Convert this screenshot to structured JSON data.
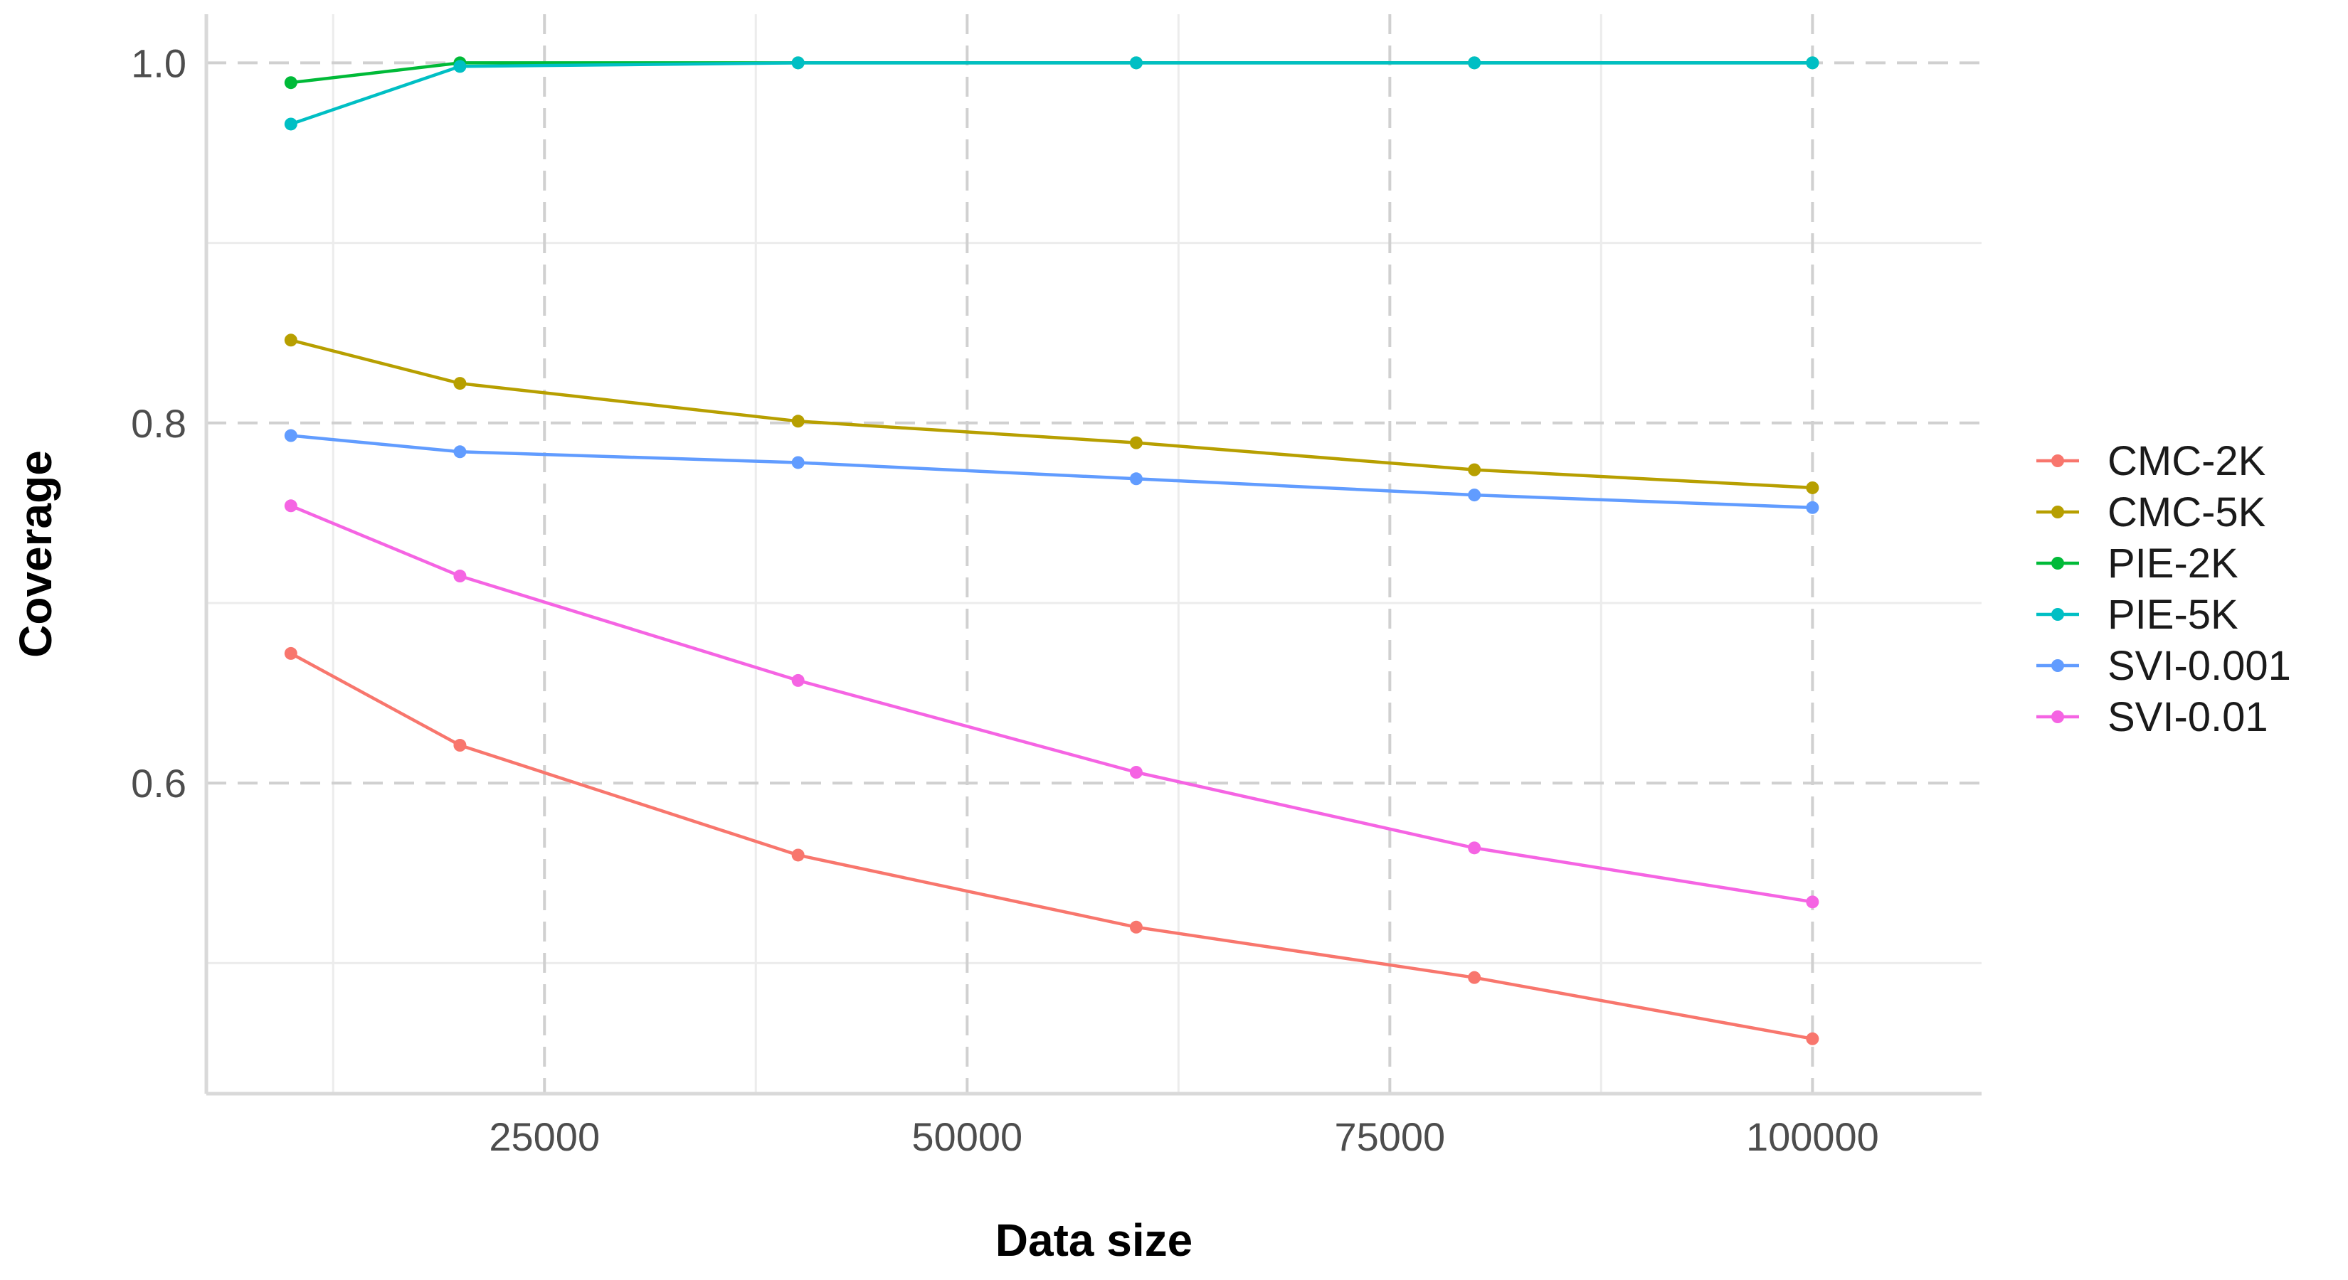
{
  "chart_data": {
    "type": "line",
    "xlabel": "Data size",
    "ylabel": "Coverage",
    "xlim": [
      5000,
      110000
    ],
    "ylim": [
      0.4275,
      1.027
    ],
    "x_ticks": [
      25000,
      50000,
      75000,
      100000
    ],
    "x_tick_labels": [
      "25000",
      "50000",
      "75000",
      "100000"
    ],
    "x_minor_ticks": [
      12500,
      37500,
      62500,
      87500
    ],
    "y_ticks": [
      0.6,
      0.8,
      1.0
    ],
    "y_tick_labels": [
      "0.6",
      "0.8",
      "1.0"
    ],
    "y_minor_ticks": [
      0.5,
      0.7,
      0.9
    ],
    "grid": true,
    "legend_position": "right",
    "x": [
      10000,
      20000,
      40000,
      60000,
      80000,
      100000
    ],
    "series": [
      {
        "name": "CMC-2K",
        "color": "#F8766D",
        "values": [
          0.672,
          0.621,
          0.56,
          0.52,
          0.492,
          0.458
        ]
      },
      {
        "name": "CMC-5K",
        "color": "#B79F00",
        "values": [
          0.846,
          0.822,
          0.801,
          0.789,
          0.774,
          0.764
        ]
      },
      {
        "name": "PIE-2K",
        "color": "#00BA38",
        "values": [
          0.989,
          1.0,
          1.0,
          1.0,
          1.0,
          1.0
        ]
      },
      {
        "name": "PIE-5K",
        "color": "#00BFC4",
        "values": [
          0.966,
          0.998,
          1.0,
          1.0,
          1.0,
          1.0
        ]
      },
      {
        "name": "SVI-0.001",
        "color": "#619CFF",
        "values": [
          0.793,
          0.784,
          0.778,
          0.769,
          0.76,
          0.753
        ]
      },
      {
        "name": "SVI-0.01",
        "color": "#F564E3",
        "values": [
          0.754,
          0.715,
          0.657,
          0.606,
          0.564,
          0.534
        ]
      }
    ]
  }
}
